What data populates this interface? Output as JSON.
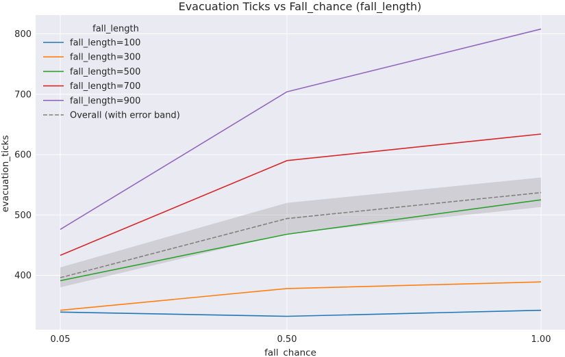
{
  "chart_data": {
    "type": "line",
    "title": "Evacuation Ticks vs Fall_chance (fall_length)",
    "xlabel": "fall_chance",
    "ylabel": "evacuation_ticks",
    "x": [
      0.05,
      0.5,
      1.0
    ],
    "x_tick_labels": [
      "0.05",
      "0.50",
      "1.00"
    ],
    "y_ticks": [
      400,
      500,
      600,
      700,
      800
    ],
    "ylim": [
      310,
      820
    ],
    "grid": true,
    "legend": {
      "title": "fall_length",
      "placement": "top-left"
    },
    "series": [
      {
        "name": "fall_length=100",
        "color": "#1f77b4",
        "dash": "solid",
        "values": [
          339,
          332,
          342
        ]
      },
      {
        "name": "fall_length=300",
        "color": "#ff7f0e",
        "dash": "solid",
        "values": [
          342,
          378,
          389
        ]
      },
      {
        "name": "fall_length=500",
        "color": "#2ca02c",
        "dash": "solid",
        "values": [
          391,
          468,
          525
        ]
      },
      {
        "name": "fall_length=700",
        "color": "#d62728",
        "dash": "solid",
        "values": [
          433,
          590,
          634
        ]
      },
      {
        "name": "fall_length=900",
        "color": "#9467bd",
        "dash": "solid",
        "values": [
          476,
          704,
          808
        ]
      },
      {
        "name": "Overall (with error band)",
        "color": "#808080",
        "dash": "dashed",
        "values": [
          396,
          494,
          537
        ],
        "band_lower": [
          380,
          469,
          513
        ],
        "band_upper": [
          413,
          520,
          562
        ]
      }
    ]
  }
}
